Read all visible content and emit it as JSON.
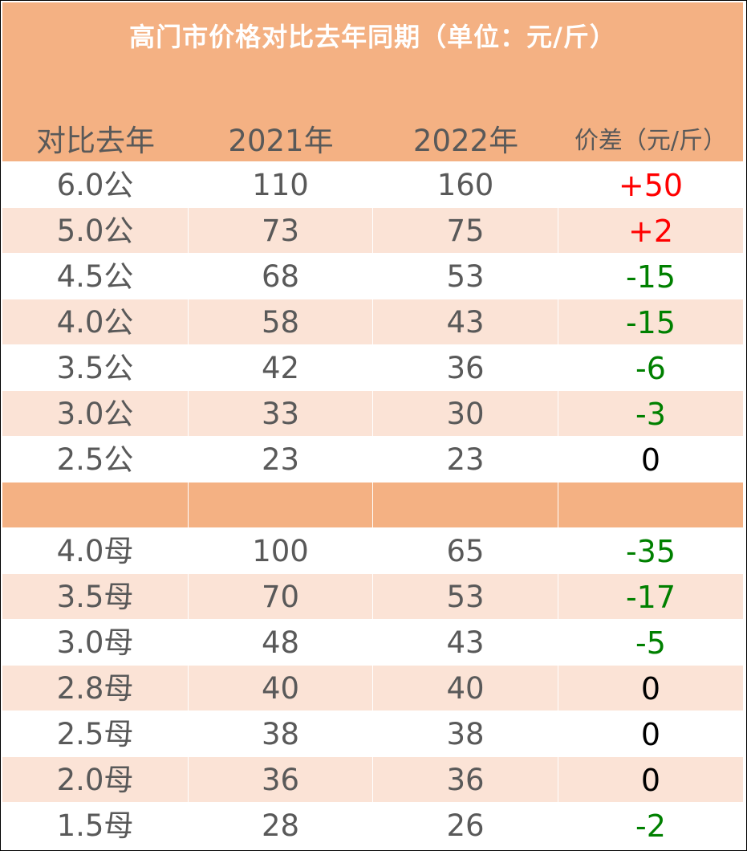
{
  "title": "高门市价格对比去年同期（单位：元/斤）",
  "headers": {
    "compare": "对比去年",
    "y2021": "2021年",
    "y2022": "2022年",
    "diff": "价差（元/斤）"
  },
  "colors": {
    "header_band": "#F4B183",
    "alt_row": "#FBE3D6",
    "increase": "#FF0000",
    "decrease": "#008000",
    "no_change": "#000000"
  },
  "male_rows": [
    {
      "spec": "6.0公",
      "y2021": "110",
      "y2022": "160",
      "diff": "+50"
    },
    {
      "spec": "5.0公",
      "y2021": "73",
      "y2022": "75",
      "diff": "+2"
    },
    {
      "spec": "4.5公",
      "y2021": "68",
      "y2022": "53",
      "diff": "-15"
    },
    {
      "spec": "4.0公",
      "y2021": "58",
      "y2022": "43",
      "diff": "-15"
    },
    {
      "spec": "3.5公",
      "y2021": "42",
      "y2022": "36",
      "diff": "-6"
    },
    {
      "spec": "3.0公",
      "y2021": "33",
      "y2022": "30",
      "diff": "-3"
    },
    {
      "spec": "2.5公",
      "y2021": "23",
      "y2022": "23",
      "diff": "0"
    }
  ],
  "female_rows": [
    {
      "spec": "4.0母",
      "y2021": "100",
      "y2022": "65",
      "diff": "-35"
    },
    {
      "spec": "3.5母",
      "y2021": "70",
      "y2022": "53",
      "diff": "-17"
    },
    {
      "spec": "3.0母",
      "y2021": "48",
      "y2022": "43",
      "diff": "-5"
    },
    {
      "spec": "2.8母",
      "y2021": "40",
      "y2022": "40",
      "diff": "0"
    },
    {
      "spec": "2.5母",
      "y2021": "38",
      "y2022": "38",
      "diff": "0"
    },
    {
      "spec": "2.0母",
      "y2021": "36",
      "y2022": "36",
      "diff": "0"
    },
    {
      "spec": "1.5母",
      "y2021": "28",
      "y2022": "26",
      "diff": "-2"
    }
  ]
}
